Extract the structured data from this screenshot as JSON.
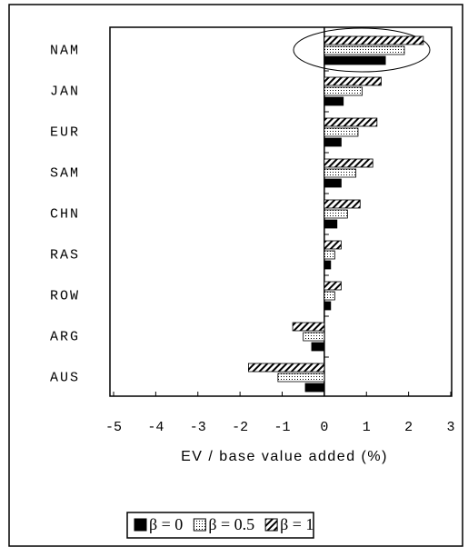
{
  "chart_data": {
    "type": "hbar",
    "x_label": "EV / base value added (%)",
    "categories": [
      "NAM",
      "JAN",
      "EUR",
      "SAM",
      "CHN",
      "RAS",
      "ROW",
      "ARG",
      "AUS"
    ],
    "series": [
      {
        "name": "β = 0",
        "pattern": "solid",
        "color": "#000000",
        "values": [
          1.45,
          0.45,
          0.4,
          0.4,
          0.3,
          0.15,
          0.15,
          -0.3,
          -0.45
        ]
      },
      {
        "name": "β = 0.5",
        "pattern": "dots",
        "color": "#000000",
        "values": [
          1.9,
          0.9,
          0.8,
          0.75,
          0.55,
          0.25,
          0.25,
          -0.5,
          -1.1
        ]
      },
      {
        "name": "β = 1",
        "pattern": "hatch",
        "color": "#000000",
        "values": [
          2.35,
          1.35,
          1.25,
          1.15,
          0.85,
          0.4,
          0.4,
          -0.75,
          -1.8
        ]
      }
    ],
    "xlim": [
      -5,
      3
    ],
    "xticks": [
      -5,
      -4,
      -3,
      -2,
      -1,
      0,
      1,
      2,
      3
    ],
    "legend": "bottom"
  }
}
